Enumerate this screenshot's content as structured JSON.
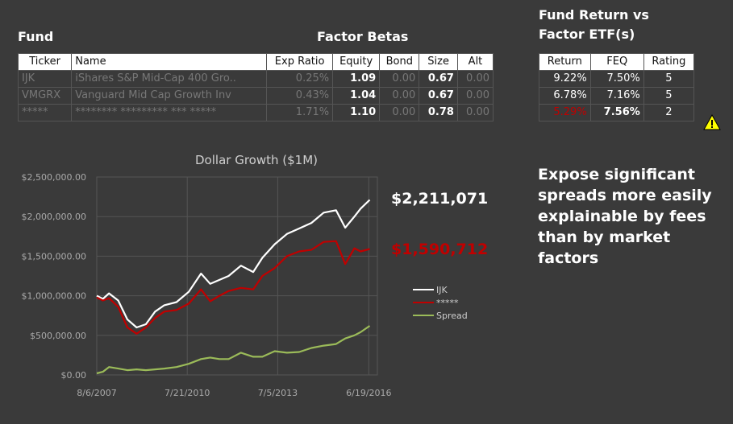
{
  "headers": {
    "fund": "Fund",
    "factor_betas": "Factor Betas",
    "return_vs": "Fund Return vs\nFactor ETF(s)"
  },
  "fund_table": {
    "columns": [
      "Ticker",
      "Name",
      "Exp Ratio",
      "Equity",
      "Bond",
      "Size",
      "Alt"
    ],
    "rows": [
      [
        "IJK",
        "iShares S&P Mid-Cap 400 Gro..",
        "0.25%",
        "1.09",
        "0.00",
        "0.67",
        "0.00"
      ],
      [
        "VMGRX",
        "Vanguard Mid Cap Growth Inv",
        "0.43%",
        "1.04",
        "0.00",
        "0.67",
        "0.00"
      ],
      [
        "*****",
        "******** ********* *** *****",
        "1.71%",
        "1.10",
        "0.00",
        "0.78",
        "0.00"
      ]
    ]
  },
  "return_table": {
    "columns": [
      "Return",
      "FEQ",
      "Rating"
    ],
    "rows": [
      [
        "9.22%",
        "7.50%",
        "5"
      ],
      [
        "6.78%",
        "7.16%",
        "5"
      ],
      [
        "5.29%",
        "7.56%",
        "2"
      ]
    ]
  },
  "warning_icon": "warning-triangle-icon",
  "callout": "Expose significant spreads more easily explainable by fees than by market factors",
  "end_labels": {
    "ijk": "$2,211,071",
    "fund": "$1,590,712"
  },
  "colors": {
    "ijk": "#ffffff",
    "fund": "#c00000",
    "spread": "#9bbb59",
    "warn": "#ffff00"
  },
  "chart_data": {
    "type": "line",
    "title": "Dollar Growth ($1M)",
    "xlabel": "",
    "ylabel": "",
    "x_ticks": [
      "8/6/2007",
      "7/21/2010",
      "7/5/2013",
      "6/19/2016"
    ],
    "y_ticks": [
      "$0.00",
      "$500,000.00",
      "$1,000,000.00",
      "$1,500,000.00",
      "$2,000,000.00",
      "$2,500,000.00"
    ],
    "ylim": [
      0,
      2500000
    ],
    "legend_position": "right",
    "x": [
      2007.6,
      2007.8,
      2008.0,
      2008.3,
      2008.6,
      2008.9,
      2009.2,
      2009.5,
      2009.8,
      2010.2,
      2010.6,
      2011.0,
      2011.3,
      2011.6,
      2011.9,
      2012.3,
      2012.7,
      2013.0,
      2013.4,
      2013.8,
      2014.2,
      2014.6,
      2015.0,
      2015.4,
      2015.7,
      2016.0,
      2016.2,
      2016.5
    ],
    "series": [
      {
        "name": "IJK",
        "values": [
          1000000,
          960000,
          1030000,
          940000,
          700000,
          600000,
          640000,
          800000,
          880000,
          920000,
          1050000,
          1280000,
          1150000,
          1200000,
          1250000,
          1380000,
          1300000,
          1480000,
          1650000,
          1780000,
          1850000,
          1920000,
          2050000,
          2080000,
          1860000,
          2000000,
          2100000,
          2211071
        ]
      },
      {
        "name": "*****",
        "values": [
          980000,
          940000,
          970000,
          860000,
          600000,
          520000,
          600000,
          720000,
          800000,
          820000,
          900000,
          1080000,
          930000,
          1000000,
          1060000,
          1100000,
          1080000,
          1250000,
          1350000,
          1500000,
          1560000,
          1580000,
          1680000,
          1690000,
          1400000,
          1600000,
          1560000,
          1590712
        ]
      },
      {
        "name": "Spread",
        "values": [
          20000,
          40000,
          100000,
          80000,
          60000,
          70000,
          60000,
          70000,
          80000,
          100000,
          140000,
          200000,
          220000,
          200000,
          200000,
          280000,
          230000,
          230000,
          300000,
          280000,
          290000,
          340000,
          370000,
          390000,
          460000,
          500000,
          540000,
          620359
        ]
      }
    ]
  }
}
